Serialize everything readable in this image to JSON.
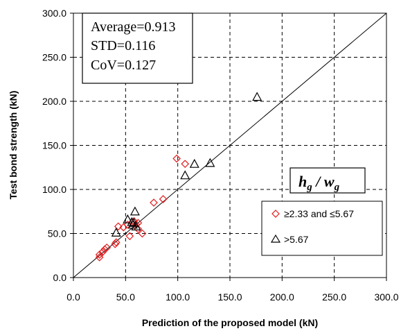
{
  "chart_data": {
    "type": "scatter",
    "xlabel": "Prediction of the proposed model (kN)",
    "ylabel": "Test bond strength (kN)",
    "xlim": [
      0,
      300
    ],
    "ylim": [
      0,
      300
    ],
    "x_ticks": [
      "0.0",
      "50.0",
      "100.0",
      "150.0",
      "200.0",
      "250.0",
      "300.0"
    ],
    "y_ticks": [
      "0.0",
      "50.0",
      "100.0",
      "150.0",
      "200.0",
      "250.0",
      "300.0"
    ],
    "grid": true,
    "reference_line": {
      "from": [
        0,
        0
      ],
      "to": [
        300,
        300
      ]
    },
    "stats": [
      "Average=0.913",
      "STD=0.116",
      "CoV=0.127"
    ],
    "legend_title": {
      "main": "h",
      "sub1": "g",
      "sep": " / ",
      "main2": "w",
      "sub2": "g"
    },
    "legend_placement": "right",
    "series": [
      {
        "name": "≥2.33 and ≤5.67",
        "marker": "diamond",
        "color": "#e31a1c",
        "points": [
          [
            25,
            23
          ],
          [
            25,
            26
          ],
          [
            28,
            29
          ],
          [
            30,
            32
          ],
          [
            32,
            34
          ],
          [
            40,
            38
          ],
          [
            41,
            40
          ],
          [
            43,
            58
          ],
          [
            48,
            57
          ],
          [
            52,
            60
          ],
          [
            54,
            47
          ],
          [
            56,
            62
          ],
          [
            58,
            64
          ],
          [
            60,
            60
          ],
          [
            62,
            55
          ],
          [
            62,
            62
          ],
          [
            66,
            50
          ],
          [
            77,
            85
          ],
          [
            86,
            89
          ],
          [
            99,
            135
          ],
          [
            107,
            129
          ]
        ]
      },
      {
        "name": ">5.67",
        "marker": "triangle",
        "color": "#000000",
        "points": [
          [
            41,
            51
          ],
          [
            52,
            66
          ],
          [
            56,
            63
          ],
          [
            57,
            60
          ],
          [
            58,
            62
          ],
          [
            59,
            75
          ],
          [
            60,
            58
          ],
          [
            107,
            116
          ],
          [
            116,
            129
          ],
          [
            131,
            130
          ],
          [
            176,
            205
          ]
        ]
      }
    ]
  }
}
